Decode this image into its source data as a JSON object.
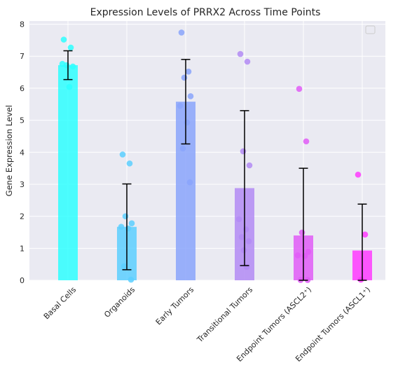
{
  "chart_data": {
    "type": "bar",
    "title": "Expression Levels of PRRX2 Across Time Points",
    "xlabel": "",
    "ylabel": "Gene Expression Level",
    "ylim": [
      0,
      8.1
    ],
    "yticks": [
      0,
      1,
      2,
      3,
      4,
      5,
      6,
      7,
      8
    ],
    "grid": true,
    "legend": "top-right (empty)",
    "categories": [
      "Basal Cells",
      "Organoids",
      "Early Tumors",
      "Transitional Tumors",
      "Endpoint Tumors (ASCL2⁺)",
      "Endpoint Tumors (ASCL1⁺)"
    ],
    "values": [
      6.72,
      1.67,
      5.58,
      2.88,
      1.4,
      0.93
    ],
    "errors": [
      0.45,
      1.34,
      1.32,
      2.42,
      2.1,
      1.45
    ],
    "colors": [
      "#2effff",
      "#5ccfff",
      "#8aa5fb",
      "#b38bf5",
      "#e05cf7",
      "#ff3bff"
    ],
    "points": [
      [
        7.52,
        7.27,
        6.72,
        6.68,
        6.76,
        6.04
      ],
      [
        3.93,
        3.65,
        2.0,
        1.78,
        1.67,
        1.62,
        0.44,
        0.02
      ],
      [
        7.74,
        6.52,
        6.33,
        5.75,
        5.45,
        4.93,
        4.12,
        3.06
      ],
      [
        7.07,
        6.83,
        4.03,
        3.59,
        1.91,
        1.59,
        1.35,
        1.22,
        0.94,
        0.42
      ],
      [
        5.98,
        4.34,
        1.49,
        0.89,
        0.78,
        0.76,
        0.01,
        0.01
      ],
      [
        3.3,
        1.43,
        0.02
      ]
    ]
  },
  "colors": {
    "plot_background": "#eaeaf2",
    "grid": "#ffffff",
    "text": "#262626",
    "errorbar": "#000000"
  }
}
